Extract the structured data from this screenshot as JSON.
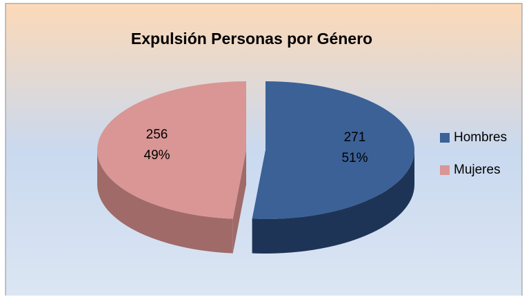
{
  "chart_data": {
    "type": "pie3d",
    "title": "Expulsión Personas por Género",
    "categories": [
      "Hombres",
      "Mujeres"
    ],
    "values": [
      271,
      256
    ],
    "percent_labels": [
      "51%",
      "49%"
    ],
    "colors": [
      "#3b6197",
      "#d99694"
    ],
    "side_colors": [
      "#1e3457",
      "#a06a68"
    ],
    "legend": "right"
  }
}
